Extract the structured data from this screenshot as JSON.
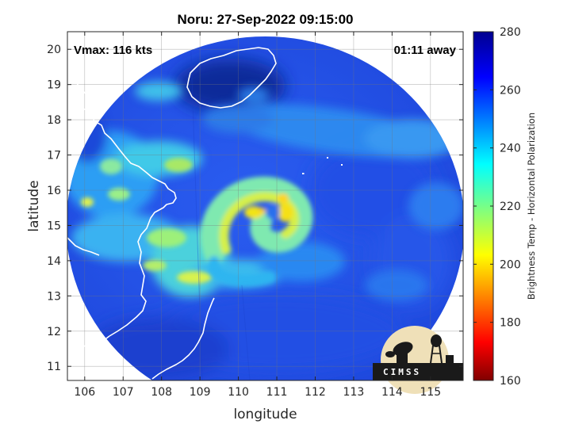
{
  "title": "Noru: 27-Sep-2022 09:15:00",
  "annotations": {
    "vmax": "Vmax: 116 kts",
    "time_away": "01:11 away"
  },
  "map": {
    "xlabel": "longitude",
    "ylabel": "latitude",
    "xlim": [
      105.55,
      115.85
    ],
    "ylim": [
      10.6,
      20.5
    ],
    "xticks": [
      "106",
      "107",
      "108",
      "109",
      "110",
      "111",
      "112",
      "113",
      "114",
      "115"
    ],
    "yticks": [
      "11",
      "12",
      "13",
      "14",
      "15",
      "16",
      "17",
      "18",
      "19",
      "20"
    ],
    "grid": true,
    "swath_center": [
      110.7,
      15.7
    ],
    "storm_eye": [
      111.25,
      15.55
    ]
  },
  "colorbar": {
    "label": "Brightness Temp - Horizontal Polarization",
    "ticks": [
      "160",
      "180",
      "200",
      "220",
      "240",
      "260",
      "280"
    ],
    "range": [
      160,
      280
    ],
    "colormap": "jet"
  },
  "logo": {
    "text": "CIMSS"
  },
  "colors": {
    "background_outside_swath": "#ffffff",
    "cold_pool": "#0c2a9e",
    "coastline": "#ffffff"
  }
}
